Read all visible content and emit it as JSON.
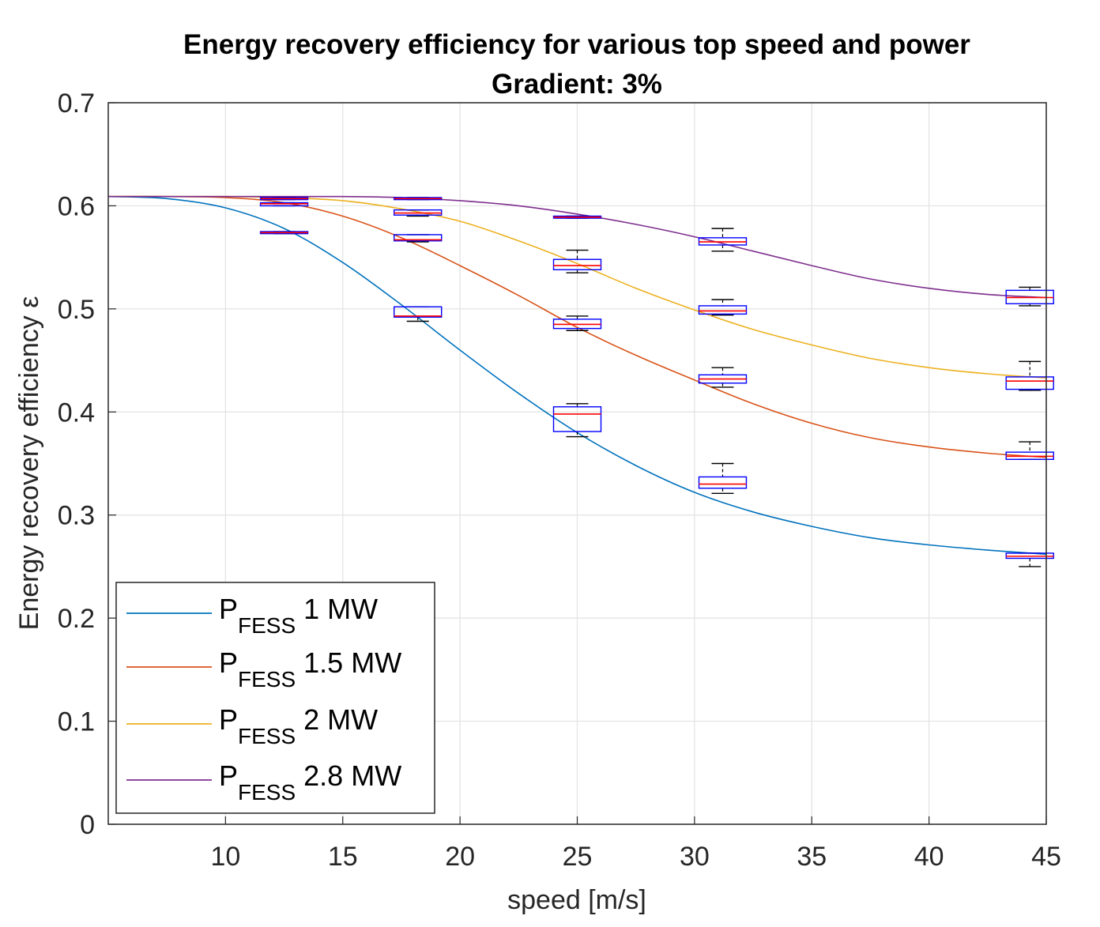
{
  "colors": {
    "P1": "#0072BD",
    "P1_5": "#D95319",
    "P2": "#EDB120",
    "P2_8": "#7E2F8E",
    "box": "#0000FF",
    "median": "#FF0000",
    "whisker": "#000000",
    "grid": "#e2e2e2",
    "axis": "#262626"
  },
  "chart_data": {
    "type": "line",
    "title": "Energy recovery efficiency for various top speed and power",
    "subtitle": "Gradient: 3%",
    "xlabel": "speed [m/s]",
    "ylabel": "Energy recovery efficiency ε",
    "xlim": [
      5,
      45
    ],
    "ylim": [
      0,
      0.7
    ],
    "xticks": [
      10,
      15,
      20,
      25,
      30,
      35,
      40,
      45
    ],
    "yticks": [
      0,
      0.1,
      0.2,
      0.3,
      0.4,
      0.5,
      0.6,
      0.7
    ],
    "grid": true,
    "legend_position": "bottom-left",
    "series": [
      {
        "key": "P1",
        "name_main": "P",
        "name_sub": "FESS",
        "name_value": "1 MW",
        "x": [
          5,
          7.5,
          10,
          12.5,
          15,
          17.5,
          20,
          22.5,
          25,
          27.5,
          30,
          32.5,
          35,
          37.5,
          40,
          42.5,
          45
        ],
        "y": [
          0.609,
          0.607,
          0.598,
          0.578,
          0.545,
          0.504,
          0.46,
          0.418,
          0.38,
          0.348,
          0.322,
          0.303,
          0.289,
          0.278,
          0.271,
          0.266,
          0.262
        ],
        "boxes": [
          {
            "x": 12.5,
            "q1": 0.573,
            "median": 0.574,
            "q3": 0.575,
            "lo": 0.573,
            "hi": 0.575
          },
          {
            "x": 18.2,
            "q1": 0.492,
            "median": 0.493,
            "q3": 0.502,
            "lo": 0.488,
            "hi": 0.502
          },
          {
            "x": 25,
            "q1": 0.381,
            "median": 0.398,
            "q3": 0.405,
            "lo": 0.376,
            "hi": 0.408
          },
          {
            "x": 31.2,
            "q1": 0.326,
            "median": 0.33,
            "q3": 0.337,
            "lo": 0.321,
            "hi": 0.35
          },
          {
            "x": 44.3,
            "q1": 0.258,
            "median": 0.26,
            "q3": 0.263,
            "lo": 0.25,
            "hi": 0.263
          }
        ]
      },
      {
        "key": "P1_5",
        "name_main": "P",
        "name_sub": "FESS",
        "name_value": "1.5 MW",
        "x": [
          5,
          7.5,
          10,
          12.5,
          15,
          17.5,
          20,
          22.5,
          25,
          27.5,
          30,
          32.5,
          35,
          37.5,
          40,
          42.5,
          45
        ],
        "y": [
          0.609,
          0.609,
          0.608,
          0.603,
          0.59,
          0.569,
          0.542,
          0.513,
          0.482,
          0.455,
          0.431,
          0.408,
          0.389,
          0.375,
          0.366,
          0.36,
          0.356
        ],
        "boxes": [
          {
            "x": 12.5,
            "q1": 0.6,
            "median": 0.602,
            "q3": 0.603,
            "lo": 0.6,
            "hi": 0.603
          },
          {
            "x": 18.2,
            "q1": 0.566,
            "median": 0.567,
            "q3": 0.572,
            "lo": 0.565,
            "hi": 0.572
          },
          {
            "x": 25,
            "q1": 0.481,
            "median": 0.485,
            "q3": 0.49,
            "lo": 0.479,
            "hi": 0.493
          },
          {
            "x": 31.2,
            "q1": 0.428,
            "median": 0.432,
            "q3": 0.436,
            "lo": 0.424,
            "hi": 0.443
          },
          {
            "x": 44.3,
            "q1": 0.354,
            "median": 0.357,
            "q3": 0.361,
            "lo": 0.354,
            "hi": 0.371
          }
        ]
      },
      {
        "key": "P2",
        "name_main": "P",
        "name_sub": "FESS",
        "name_value": "2 MW",
        "x": [
          5,
          7.5,
          10,
          12.5,
          15,
          17.5,
          20,
          22.5,
          25,
          27.5,
          30,
          32.5,
          35,
          37.5,
          40,
          42.5,
          45
        ],
        "y": [
          0.609,
          0.609,
          0.609,
          0.608,
          0.605,
          0.597,
          0.585,
          0.566,
          0.544,
          0.52,
          0.499,
          0.48,
          0.465,
          0.452,
          0.443,
          0.437,
          0.433
        ],
        "boxes": [
          {
            "x": 18.2,
            "q1": 0.591,
            "median": 0.593,
            "q3": 0.596,
            "lo": 0.59,
            "hi": 0.596
          },
          {
            "x": 25,
            "q1": 0.538,
            "median": 0.542,
            "q3": 0.548,
            "lo": 0.535,
            "hi": 0.557
          },
          {
            "x": 31.2,
            "q1": 0.495,
            "median": 0.498,
            "q3": 0.503,
            "lo": 0.494,
            "hi": 0.509
          },
          {
            "x": 44.3,
            "q1": 0.422,
            "median": 0.43,
            "q3": 0.434,
            "lo": 0.421,
            "hi": 0.449
          }
        ]
      },
      {
        "key": "P2_8",
        "name_main": "P",
        "name_sub": "FESS",
        "name_value": "2.8 MW",
        "x": [
          5,
          7.5,
          10,
          12.5,
          15,
          17.5,
          20,
          22.5,
          25,
          27.5,
          30,
          32.5,
          35,
          37.5,
          40,
          42.5,
          45
        ],
        "y": [
          0.609,
          0.609,
          0.609,
          0.609,
          0.609,
          0.608,
          0.605,
          0.6,
          0.592,
          0.582,
          0.57,
          0.556,
          0.542,
          0.529,
          0.52,
          0.514,
          0.511
        ],
        "boxes": [
          {
            "x": 12.5,
            "q1": 0.606,
            "median": 0.607,
            "q3": 0.608,
            "lo": 0.606,
            "hi": 0.608
          },
          {
            "x": 18.2,
            "q1": 0.606,
            "median": 0.607,
            "q3": 0.608,
            "lo": 0.606,
            "hi": 0.608
          },
          {
            "x": 25,
            "q1": 0.588,
            "median": 0.589,
            "q3": 0.59,
            "lo": 0.588,
            "hi": 0.59
          },
          {
            "x": 31.2,
            "q1": 0.562,
            "median": 0.565,
            "q3": 0.569,
            "lo": 0.556,
            "hi": 0.578
          },
          {
            "x": 44.3,
            "q1": 0.505,
            "median": 0.511,
            "q3": 0.518,
            "lo": 0.503,
            "hi": 0.521
          }
        ]
      }
    ]
  }
}
